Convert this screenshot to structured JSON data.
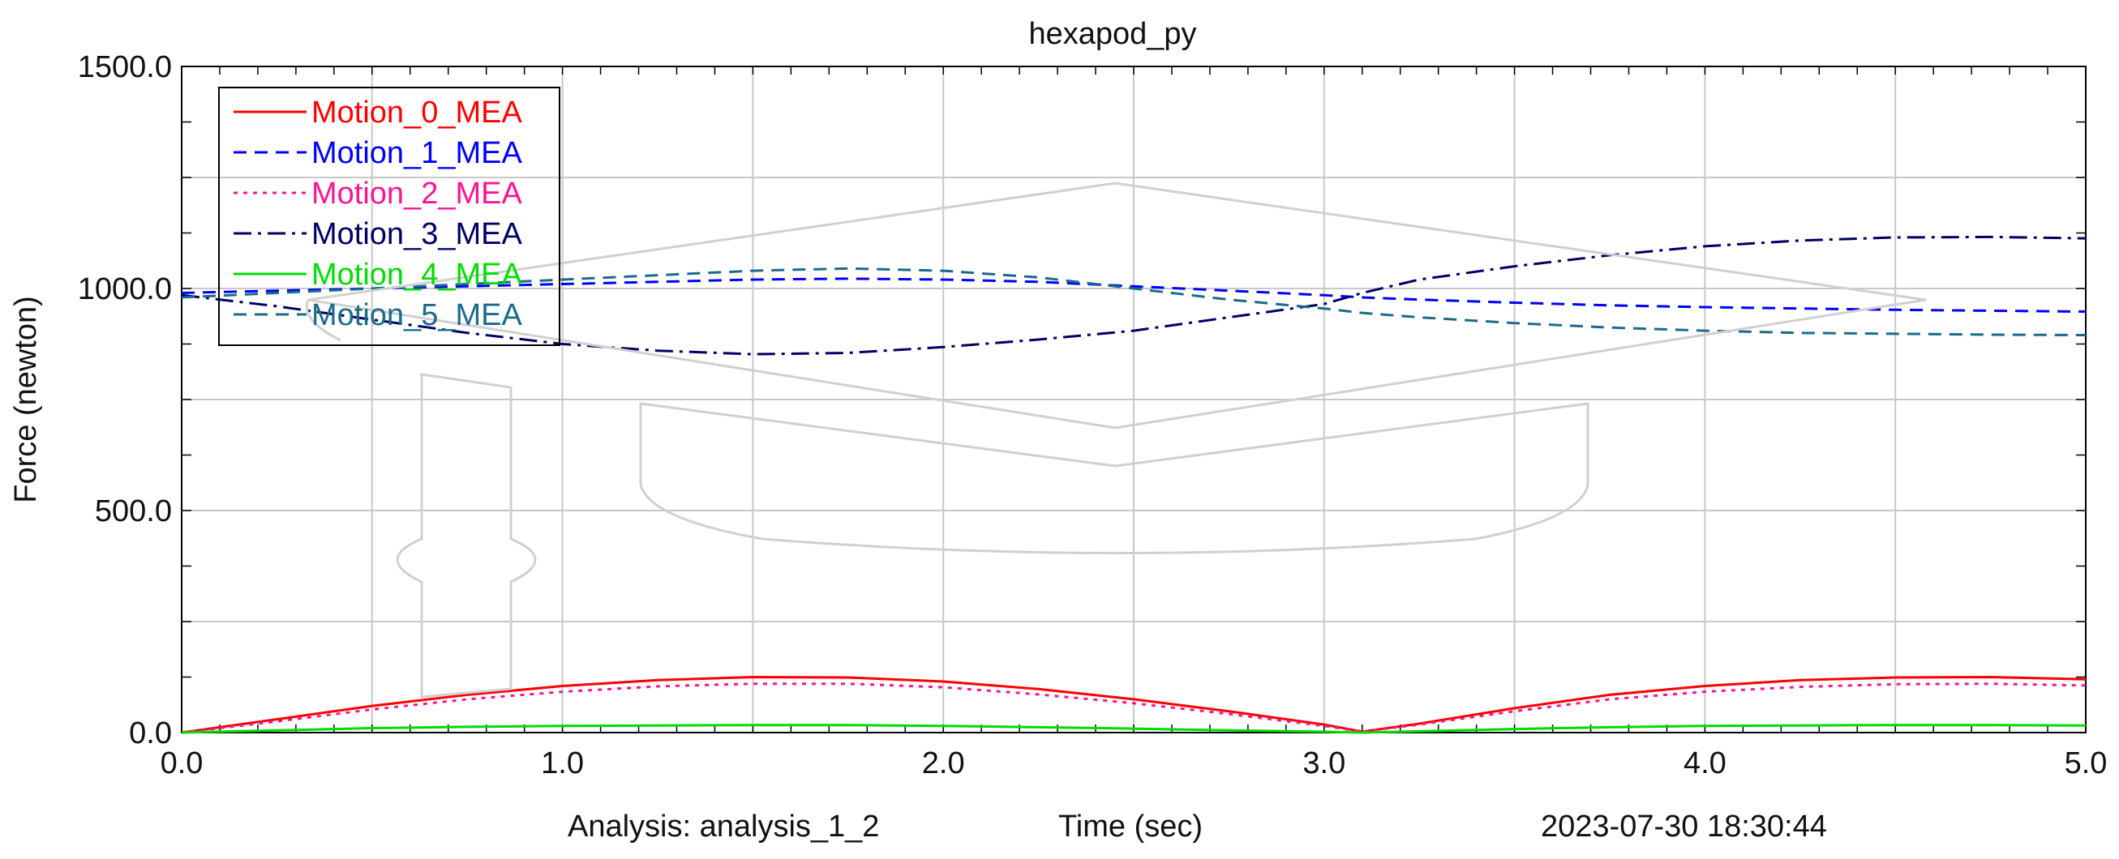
{
  "chart_data": {
    "type": "line",
    "title": "hexapod_py",
    "xlabel": "Time (sec)",
    "ylabel": "Force (newton)",
    "xlim": [
      0,
      5
    ],
    "ylim": [
      0,
      1500
    ],
    "x_ticks": [
      "0.0",
      "1.0",
      "2.0",
      "3.0",
      "4.0",
      "5.0"
    ],
    "y_ticks": [
      "0.0",
      "500.0",
      "1000.0",
      "1500.0"
    ],
    "grid": true,
    "legend_position": "top-left",
    "x": [
      0.0,
      0.25,
      0.5,
      0.75,
      1.0,
      1.25,
      1.5,
      1.75,
      2.0,
      2.25,
      2.5,
      2.75,
      3.0,
      3.1,
      3.25,
      3.5,
      3.75,
      4.0,
      4.25,
      4.5,
      4.75,
      5.0
    ],
    "series": [
      {
        "name": "Motion_0_MEA",
        "color": "#ff0000",
        "dash": "solid",
        "values": [
          0,
          30,
          60,
          85,
          105,
          118,
          125,
          124,
          115,
          98,
          75,
          48,
          18,
          2,
          20,
          55,
          85,
          105,
          118,
          124,
          125,
          120
        ]
      },
      {
        "name": "Motion_1_MEA",
        "color": "#0000ff",
        "dash": "dashed",
        "values": [
          990,
          995,
          1000,
          1005,
          1010,
          1015,
          1020,
          1022,
          1020,
          1015,
          1005,
          995,
          985,
          980,
          975,
          968,
          962,
          958,
          955,
          952,
          950,
          948
        ]
      },
      {
        "name": "Motion_2_MEA",
        "color": "#ff1493",
        "dash": "dotted",
        "values": [
          0,
          25,
          52,
          75,
          92,
          104,
          110,
          110,
          102,
          86,
          66,
          42,
          15,
          2,
          18,
          48,
          75,
          92,
          103,
          109,
          110,
          106
        ]
      },
      {
        "name": "Motion_3_MEA",
        "color": "#000066",
        "dash": "dashdot",
        "values": [
          985,
          960,
          930,
          900,
          875,
          860,
          852,
          855,
          868,
          885,
          905,
          935,
          965,
          990,
          1020,
          1050,
          1075,
          1095,
          1108,
          1115,
          1116,
          1113
        ]
      },
      {
        "name": "Motion_4_MEA",
        "color": "#00dd00",
        "dash": "solid",
        "values": [
          0,
          5,
          10,
          13,
          15,
          16,
          17,
          17,
          15,
          12,
          9,
          5,
          2,
          0,
          3,
          8,
          12,
          15,
          16,
          17,
          17,
          16
        ]
      },
      {
        "name": "Motion_5_MEA",
        "color": "#1a6b8a",
        "dash": "dashed",
        "values": [
          980,
          990,
          1000,
          1010,
          1020,
          1030,
          1040,
          1045,
          1040,
          1025,
          1000,
          975,
          955,
          945,
          935,
          922,
          912,
          905,
          900,
          898,
          896,
          895
        ]
      }
    ]
  },
  "footer": {
    "analysis": "Analysis:  analysis_1_2",
    "xlabel": "Time (sec)",
    "timestamp": "2023-07-30 18:30:44"
  },
  "colors": {
    "grid": "#c8c8c8",
    "watermark": "#cfcfcf",
    "axis": "#000000"
  }
}
